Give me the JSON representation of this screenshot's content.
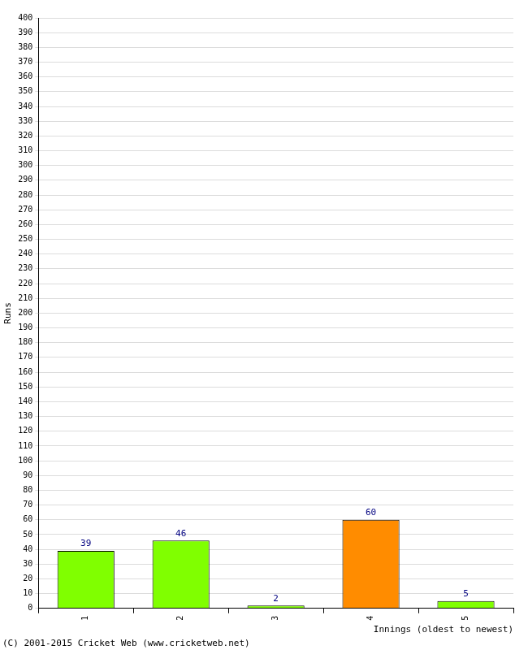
{
  "chart_data": {
    "type": "bar",
    "categories": [
      "1",
      "2",
      "3",
      "4",
      "5"
    ],
    "values": [
      39,
      46,
      2,
      60,
      5
    ],
    "colors": [
      "#80ff00",
      "#80ff00",
      "#80ff00",
      "#ff8c00",
      "#80ff00"
    ],
    "x_label": "Innings (oldest to newest)",
    "y_label": "Runs",
    "annotation": "(C) 2001-2015 Cricket Web (www.cricketweb.net)",
    "ylim": [
      0,
      400
    ],
    "yticks": [
      0,
      10,
      20,
      30,
      40,
      50,
      60,
      70,
      80,
      90,
      100,
      110,
      120,
      130,
      140,
      150,
      160,
      170,
      180,
      190,
      200,
      210,
      220,
      230,
      240,
      250,
      260,
      270,
      280,
      290,
      300,
      310,
      320,
      330,
      340,
      350,
      360,
      370,
      380,
      390,
      400
    ],
    "grid": true,
    "data_labels": true
  }
}
